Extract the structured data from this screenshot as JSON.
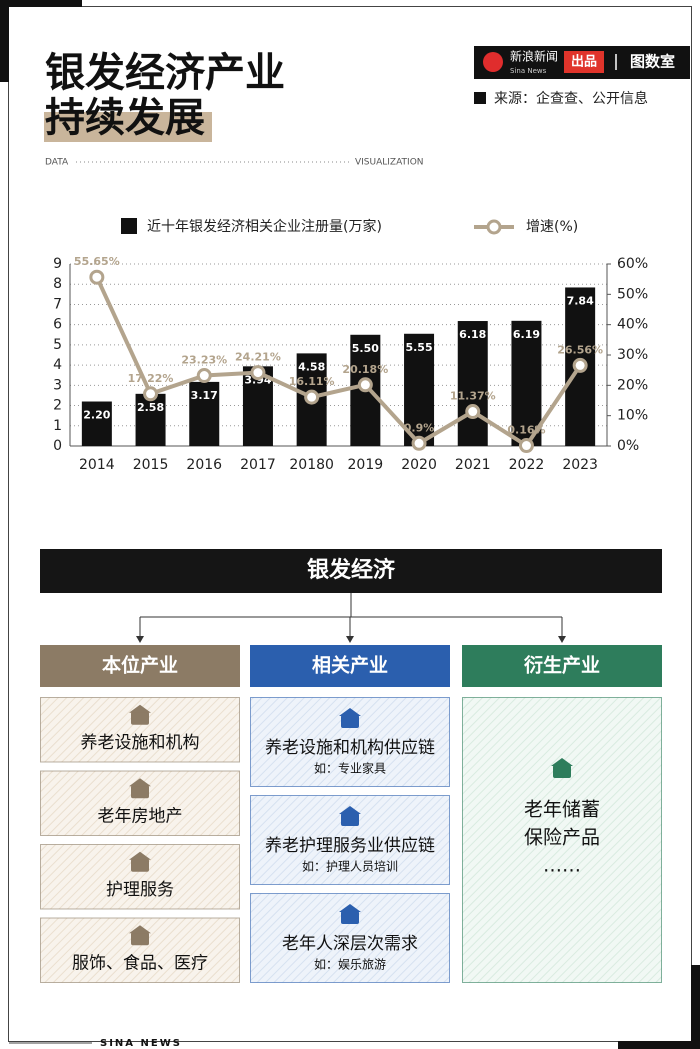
{
  "header": {
    "title_lines": [
      "银发经济产业",
      "持续发展"
    ],
    "brand": "新浪新闻",
    "brand_en": "Sina News",
    "produced": "出品",
    "studio": "图数室",
    "source": "来源：企查查、公开信息",
    "data_label": "DATA",
    "vis_label": "VISUALIZATION"
  },
  "chart_data": {
    "type": "bar",
    "categories": [
      "2014",
      "2015",
      "2016",
      "2017",
      "20180",
      "2019",
      "2020",
      "2021",
      "2022",
      "2023"
    ],
    "series": [
      {
        "name": "近十年银发经济相关企业注册量(万家)",
        "type": "bar",
        "color": "#111111",
        "values": [
          2.2,
          2.58,
          3.17,
          3.94,
          4.58,
          5.5,
          5.55,
          6.18,
          6.19,
          7.84
        ],
        "value_labels": [
          "2.20",
          "2.58",
          "3.17",
          "3.94",
          "4.58",
          "5.50",
          "5.55",
          "6.18",
          "6.19",
          "7.84"
        ]
      },
      {
        "name": "增速(%)",
        "type": "line",
        "axis": "y2",
        "color": "#b3a48d",
        "values": [
          55.65,
          17.22,
          23.23,
          24.21,
          16.11,
          20.18,
          0.9,
          11.37,
          0.16,
          26.56
        ],
        "value_labels": [
          "55.65%",
          "17.22%",
          "23.23%",
          "24.21%",
          "16.11%",
          "20.18%",
          "0.9%",
          "11.37%",
          "0.16%",
          "26.56%"
        ]
      }
    ],
    "ylim": [
      0,
      9
    ],
    "yticks": [
      0,
      1,
      2,
      3,
      4,
      5,
      6,
      7,
      8,
      9
    ],
    "y2lim": [
      0,
      60
    ],
    "y2ticks": [
      {
        "value": 0,
        "label": "0%"
      },
      {
        "value": 10,
        "label": "10%"
      },
      {
        "value": 20,
        "label": "20%"
      },
      {
        "value": 30,
        "label": "30%"
      },
      {
        "value": 40,
        "label": "40%"
      },
      {
        "value": 50,
        "label": "50%"
      },
      {
        "value": 60,
        "label": "60%"
      }
    ],
    "grid": true
  },
  "diagram": {
    "root": "银发经济",
    "columns": [
      {
        "title": "本位产业",
        "color": "#8c7b65",
        "items": [
          {
            "label": "养老设施和机构"
          },
          {
            "label": "老年房地产"
          },
          {
            "label": "护理服务"
          },
          {
            "label": "服饰、食品、医疗"
          }
        ]
      },
      {
        "title": "相关产业",
        "color": "#2b5fae",
        "items": [
          {
            "label": "养老设施和机构供应链",
            "note": "如：专业家具"
          },
          {
            "label": "养老护理服务业供应链",
            "note": "如：护理人员培训"
          },
          {
            "label": "老年人深层次需求",
            "note": "如：娱乐旅游"
          }
        ]
      },
      {
        "title": "衍生产业",
        "color": "#2e7d5c",
        "items": [
          {
            "lines": [
              "老年储蓄",
              "保险产品",
              "……"
            ]
          }
        ]
      }
    ]
  },
  "footer": "SINA NEWS"
}
